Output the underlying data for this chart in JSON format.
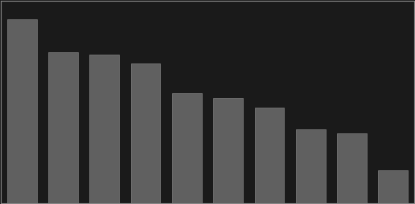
{
  "values": [
    100,
    82,
    81,
    76,
    60,
    57,
    52,
    40,
    38,
    18
  ],
  "bar_color": "#606060",
  "background_color": "#1a1a1a",
  "plot_bg_color": "#1a1a1a",
  "ylim": [
    0,
    110
  ],
  "grid_color": "#555555",
  "n_gridlines": 5,
  "bar_width": 0.72,
  "edge_color": "#808080",
  "border_color": "#888888"
}
